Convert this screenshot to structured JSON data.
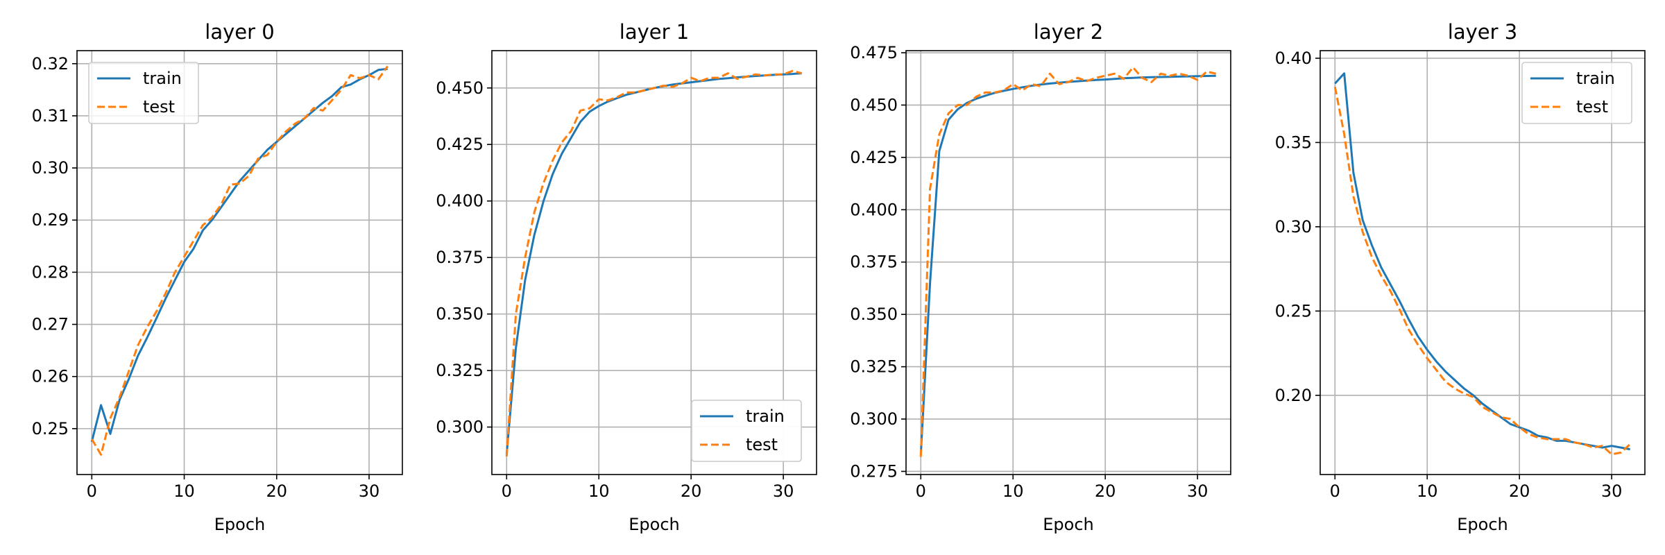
{
  "chart_data": [
    {
      "type": "line",
      "title": "layer 0",
      "xlabel": "Epoch",
      "ylabel": "",
      "xlim": [
        -1.6,
        33.6
      ],
      "ylim": [
        0.2412,
        0.3225
      ],
      "xticks": [
        0,
        10,
        20,
        30
      ],
      "yticks": [
        0.25,
        0.26,
        0.27,
        0.28,
        0.29,
        0.3,
        0.31,
        0.32
      ],
      "ytick_labels": [
        "0.25",
        "0.26",
        "0.27",
        "0.28",
        "0.29",
        "0.30",
        "0.31",
        "0.32"
      ],
      "grid": true,
      "legend_position": "upper left",
      "x": [
        0,
        1,
        2,
        3,
        4,
        5,
        6,
        7,
        8,
        9,
        10,
        11,
        12,
        13,
        14,
        15,
        16,
        17,
        18,
        19,
        20,
        21,
        22,
        23,
        24,
        25,
        26,
        27,
        28,
        29,
        30,
        31,
        32
      ],
      "series": [
        {
          "name": "train",
          "color": "#1f77b4",
          "style": "solid",
          "values": [
            0.2475,
            0.2545,
            0.249,
            0.2555,
            0.2595,
            0.264,
            0.2675,
            0.2712,
            0.275,
            0.2785,
            0.282,
            0.2845,
            0.288,
            0.29,
            0.2925,
            0.295,
            0.2975,
            0.2995,
            0.3015,
            0.3035,
            0.305,
            0.3065,
            0.308,
            0.3095,
            0.311,
            0.3125,
            0.3138,
            0.3155,
            0.316,
            0.317,
            0.3178,
            0.3188,
            0.319
          ]
        },
        {
          "name": "test",
          "color": "#ff7f0e",
          "style": "dashed",
          "values": [
            0.248,
            0.245,
            0.252,
            0.256,
            0.261,
            0.266,
            0.2695,
            0.2725,
            0.276,
            0.28,
            0.283,
            0.286,
            0.289,
            0.2905,
            0.293,
            0.2968,
            0.297,
            0.2985,
            0.3018,
            0.3025,
            0.305,
            0.307,
            0.3085,
            0.3095,
            0.3115,
            0.311,
            0.313,
            0.315,
            0.3178,
            0.3172,
            0.3178,
            0.317,
            0.3195
          ]
        }
      ]
    },
    {
      "type": "line",
      "title": "layer 1",
      "xlabel": "Epoch",
      "ylabel": "",
      "xlim": [
        -1.6,
        33.6
      ],
      "ylim": [
        0.279,
        0.4665
      ],
      "xticks": [
        0,
        10,
        20,
        30
      ],
      "yticks": [
        0.3,
        0.325,
        0.35,
        0.375,
        0.4,
        0.425,
        0.45
      ],
      "ytick_labels": [
        "0.300",
        "0.325",
        "0.350",
        "0.375",
        "0.400",
        "0.425",
        "0.450"
      ],
      "grid": true,
      "legend_position": "lower right",
      "x": [
        0,
        1,
        2,
        3,
        4,
        5,
        6,
        7,
        8,
        9,
        10,
        11,
        12,
        13,
        14,
        15,
        16,
        17,
        18,
        19,
        20,
        21,
        22,
        23,
        24,
        25,
        26,
        27,
        28,
        29,
        30,
        31,
        32
      ],
      "series": [
        {
          "name": "train",
          "color": "#1f77b4",
          "style": "solid",
          "values": [
            0.288,
            0.335,
            0.365,
            0.385,
            0.4,
            0.412,
            0.421,
            0.428,
            0.435,
            0.4395,
            0.442,
            0.444,
            0.4455,
            0.447,
            0.448,
            0.449,
            0.45,
            0.4508,
            0.4515,
            0.452,
            0.4525,
            0.453,
            0.4535,
            0.454,
            0.4543,
            0.4547,
            0.455,
            0.4553,
            0.4555,
            0.4558,
            0.456,
            0.4562,
            0.4565
          ]
        },
        {
          "name": "test",
          "color": "#ff7f0e",
          "style": "dashed",
          "values": [
            0.287,
            0.35,
            0.375,
            0.395,
            0.408,
            0.418,
            0.426,
            0.431,
            0.44,
            0.441,
            0.445,
            0.4445,
            0.446,
            0.448,
            0.448,
            0.449,
            0.45,
            0.451,
            0.4505,
            0.452,
            0.4545,
            0.453,
            0.4545,
            0.4545,
            0.4565,
            0.454,
            0.455,
            0.456,
            0.4555,
            0.456,
            0.456,
            0.4575,
            0.4565
          ]
        }
      ]
    },
    {
      "type": "line",
      "title": "layer 2",
      "xlabel": "Epoch",
      "ylabel": "",
      "xlim": [
        -1.6,
        33.6
      ],
      "ylim": [
        0.2735,
        0.476
      ],
      "xticks": [
        0,
        10,
        20,
        30
      ],
      "yticks": [
        0.275,
        0.3,
        0.325,
        0.35,
        0.375,
        0.4,
        0.425,
        0.45,
        0.475
      ],
      "ytick_labels": [
        "0.275",
        "0.300",
        "0.325",
        "0.350",
        "0.375",
        "0.400",
        "0.425",
        "0.450",
        "0.475"
      ],
      "grid": true,
      "legend_position": "lower right",
      "x": [
        0,
        1,
        2,
        3,
        4,
        5,
        6,
        7,
        8,
        9,
        10,
        11,
        12,
        13,
        14,
        15,
        16,
        17,
        18,
        19,
        20,
        21,
        22,
        23,
        24,
        25,
        26,
        27,
        28,
        29,
        30,
        31,
        32
      ],
      "series": [
        {
          "name": "train",
          "color": "#1f77b4",
          "style": "solid",
          "values": [
            0.283,
            0.365,
            0.428,
            0.443,
            0.448,
            0.451,
            0.453,
            0.4545,
            0.4558,
            0.4568,
            0.4577,
            0.4585,
            0.4592,
            0.4598,
            0.4603,
            0.4607,
            0.4611,
            0.4614,
            0.4617,
            0.462,
            0.4622,
            0.4625,
            0.4628,
            0.463,
            0.4632,
            0.4633,
            0.4634,
            0.4635,
            0.4636,
            0.4637,
            0.4638,
            0.4639,
            0.464
          ]
        },
        {
          "name": "test",
          "color": "#ff7f0e",
          "style": "dashed",
          "values": [
            0.282,
            0.41,
            0.436,
            0.446,
            0.45,
            0.45,
            0.454,
            0.456,
            0.456,
            0.457,
            0.46,
            0.457,
            0.46,
            0.459,
            0.465,
            0.46,
            0.461,
            0.463,
            0.4615,
            0.463,
            0.464,
            0.465,
            0.4625,
            0.468,
            0.463,
            0.461,
            0.465,
            0.464,
            0.465,
            0.464,
            0.462,
            0.466,
            0.465
          ]
        }
      ]
    },
    {
      "type": "line",
      "title": "layer 3",
      "xlabel": "Epoch",
      "ylabel": "",
      "xlim": [
        -1.6,
        33.6
      ],
      "ylim": [
        0.153,
        0.4045
      ],
      "xticks": [
        0,
        10,
        20,
        30
      ],
      "yticks": [
        0.2,
        0.25,
        0.3,
        0.35,
        0.4
      ],
      "ytick_labels": [
        "0.20",
        "0.25",
        "0.30",
        "0.35",
        "0.40"
      ],
      "grid": true,
      "legend_position": "upper right",
      "x": [
        0,
        1,
        2,
        3,
        4,
        5,
        6,
        7,
        8,
        9,
        10,
        11,
        12,
        13,
        14,
        15,
        16,
        17,
        18,
        19,
        20,
        21,
        22,
        23,
        24,
        25,
        26,
        27,
        28,
        29,
        30,
        31,
        32
      ],
      "series": [
        {
          "name": "train",
          "color": "#1f77b4",
          "style": "solid",
          "values": [
            0.385,
            0.391,
            0.332,
            0.304,
            0.289,
            0.276,
            0.266,
            0.256,
            0.245,
            0.235,
            0.227,
            0.22,
            0.214,
            0.209,
            0.204,
            0.2,
            0.195,
            0.191,
            0.187,
            0.183,
            0.181,
            0.179,
            0.176,
            0.175,
            0.173,
            0.173,
            0.172,
            0.171,
            0.17,
            0.169,
            0.17,
            0.169,
            0.168
          ]
        },
        {
          "name": "test",
          "color": "#ff7f0e",
          "style": "dashed",
          "values": [
            0.383,
            0.355,
            0.318,
            0.297,
            0.282,
            0.271,
            0.262,
            0.251,
            0.239,
            0.23,
            0.222,
            0.215,
            0.208,
            0.204,
            0.201,
            0.199,
            0.193,
            0.19,
            0.187,
            0.186,
            0.181,
            0.177,
            0.175,
            0.174,
            0.174,
            0.174,
            0.172,
            0.171,
            0.169,
            0.17,
            0.165,
            0.166,
            0.171
          ]
        }
      ]
    }
  ]
}
